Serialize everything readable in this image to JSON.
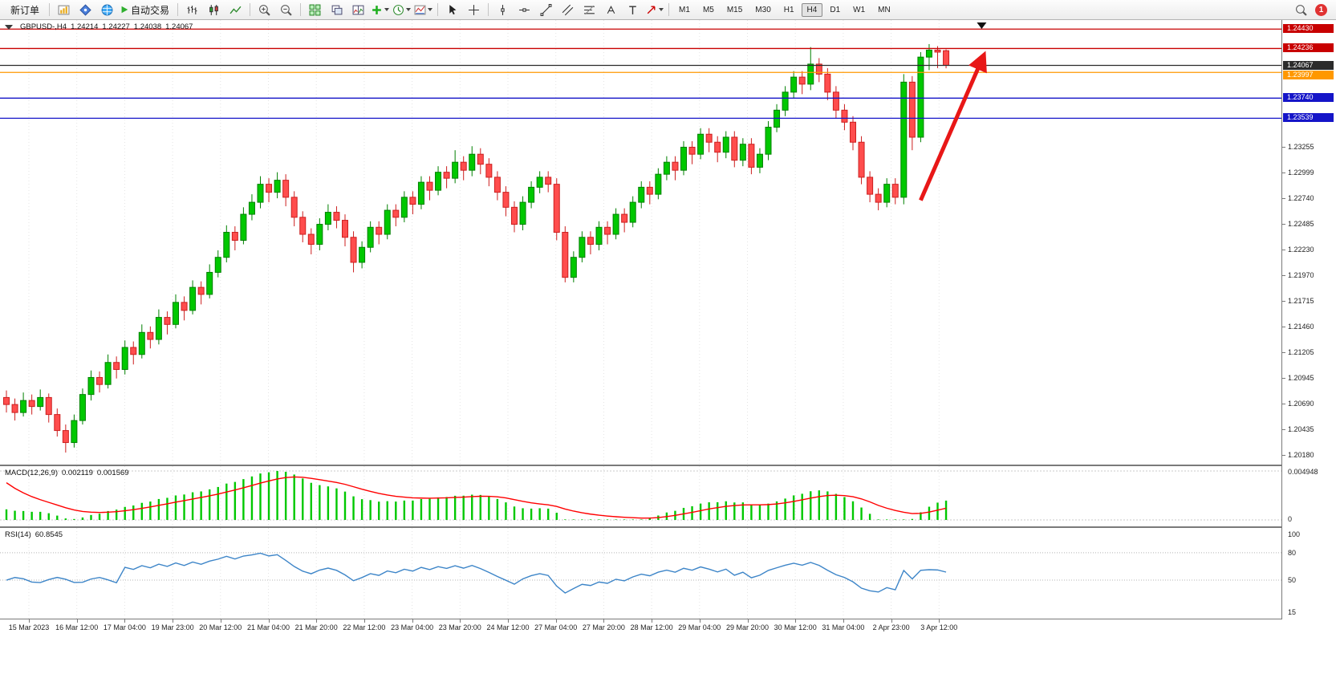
{
  "toolbar": {
    "new_order": "新订单",
    "autotrading": "自动交易",
    "timeframes": [
      "M1",
      "M5",
      "M15",
      "M30",
      "H1",
      "H4",
      "D1",
      "W1",
      "MN"
    ],
    "active_timeframe": "H4",
    "notification_count": "1",
    "icon_names": [
      "market-watch-icon",
      "navigator-icon",
      "terminal-icon",
      "autotrade-play-icon",
      "bar-chart-icon",
      "candlestick-chart-icon",
      "line-chart-icon",
      "zoom-in-icon",
      "zoom-out-icon",
      "tile-windows-icon",
      "cascade-windows-icon",
      "arrange-windows-icon",
      "indicators-icon",
      "periods-icon",
      "templates-icon",
      "cursor-icon",
      "crosshair-icon",
      "vertical-line-icon",
      "horizontal-line-icon",
      "trendline-icon",
      "channel-icon",
      "fibonacci-icon",
      "text-icon",
      "label-icon",
      "shapes-icon",
      "search-icon",
      "notification-badge"
    ]
  },
  "chart": {
    "symbol_period": "GBPUSD-,H4",
    "open": "1.24214",
    "high": "1.24227",
    "low": "1.24038",
    "close": "1.24067",
    "levels": [
      {
        "price": "1.24430",
        "value": 1.2443,
        "color": "#c80000"
      },
      {
        "price": "1.24236",
        "value": 1.24236,
        "color": "#c80000"
      },
      {
        "price": "1.24067",
        "value": 1.24067,
        "color": "#2b2b2b"
      },
      {
        "price": "1.23997",
        "value": 1.23997,
        "color": "#ff9800"
      },
      {
        "price": "1.23740",
        "value": 1.2374,
        "color": "#1515c8"
      },
      {
        "price": "1.23539",
        "value": 1.23539,
        "color": "#1515c8"
      }
    ]
  },
  "macd": {
    "label": "MACD(12,26,9)",
    "macd_value": "0.002119",
    "signal_value": "0.001569",
    "axis_labels": [
      "0.004948",
      "0"
    ]
  },
  "rsi": {
    "label": "RSI(14)",
    "value": "60.8545",
    "axis_labels": [
      "100",
      "80",
      "50",
      "15"
    ]
  },
  "chart_data": {
    "type": "candlestick",
    "symbol": "GBPUSD",
    "period": "H4",
    "price_axis": {
      "min": 1.2008,
      "max": 1.2452,
      "labels": [
        "1.23255",
        "1.22999",
        "1.22740",
        "1.22485",
        "1.22230",
        "1.21970",
        "1.21715",
        "1.21460",
        "1.21205",
        "1.20945",
        "1.20690",
        "1.20435",
        "1.20180"
      ]
    },
    "x_labels": [
      "15 Mar 2023",
      "16 Mar 12:00",
      "17 Mar 04:00",
      "19 Mar 23:00",
      "20 Mar 12:00",
      "21 Mar 04:00",
      "21 Mar 20:00",
      "22 Mar 12:00",
      "23 Mar 04:00",
      "23 Mar 20:00",
      "24 Mar 12:00",
      "27 Mar 04:00",
      "27 Mar 20:00",
      "28 Mar 12:00",
      "29 Mar 04:00",
      "29 Mar 20:00",
      "30 Mar 12:00",
      "31 Mar 04:00",
      "2 Apr 23:00",
      "3 Apr 12:00"
    ],
    "candles": [
      [
        1.2075,
        1.2082,
        1.206,
        1.2068
      ],
      [
        1.2068,
        1.2074,
        1.2052,
        1.206
      ],
      [
        1.206,
        1.208,
        1.2056,
        1.2072
      ],
      [
        1.2072,
        1.2078,
        1.2058,
        1.2066
      ],
      [
        1.2066,
        1.2083,
        1.2062,
        1.2075
      ],
      [
        1.2075,
        1.2079,
        1.205,
        1.2058
      ],
      [
        1.2058,
        1.2064,
        1.2036,
        1.2042
      ],
      [
        1.2042,
        1.2048,
        1.202,
        1.203
      ],
      [
        1.203,
        1.2058,
        1.2025,
        1.2052
      ],
      [
        1.2052,
        1.2084,
        1.2048,
        1.2078
      ],
      [
        1.2078,
        1.2102,
        1.2072,
        1.2095
      ],
      [
        1.2095,
        1.2101,
        1.208,
        1.2088
      ],
      [
        1.2088,
        1.2118,
        1.2084,
        1.211
      ],
      [
        1.211,
        1.2116,
        1.2094,
        1.2103
      ],
      [
        1.2103,
        1.2132,
        1.2098,
        1.2125
      ],
      [
        1.2125,
        1.2131,
        1.2108,
        1.2118
      ],
      [
        1.2118,
        1.2148,
        1.2114,
        1.214
      ],
      [
        1.214,
        1.2146,
        1.2124,
        1.2133
      ],
      [
        1.2133,
        1.2163,
        1.2128,
        1.2155
      ],
      [
        1.2155,
        1.2161,
        1.2138,
        1.2148
      ],
      [
        1.2148,
        1.2178,
        1.2144,
        1.217
      ],
      [
        1.217,
        1.2176,
        1.2152,
        1.2162
      ],
      [
        1.2162,
        1.2192,
        1.2158,
        1.2185
      ],
      [
        1.2185,
        1.2191,
        1.2168,
        1.2178
      ],
      [
        1.2178,
        1.2208,
        1.2174,
        1.22
      ],
      [
        1.22,
        1.2222,
        1.2195,
        1.2215
      ],
      [
        1.2215,
        1.2247,
        1.221,
        1.224
      ],
      [
        1.224,
        1.2246,
        1.2222,
        1.2232
      ],
      [
        1.2232,
        1.2265,
        1.2228,
        1.2258
      ],
      [
        1.2258,
        1.2278,
        1.2252,
        1.227
      ],
      [
        1.227,
        1.2296,
        1.2264,
        1.2288
      ],
      [
        1.2288,
        1.2294,
        1.227,
        1.228
      ],
      [
        1.228,
        1.23,
        1.2274,
        1.2292
      ],
      [
        1.2292,
        1.2298,
        1.2266,
        1.2275
      ],
      [
        1.2275,
        1.2281,
        1.2246,
        1.2255
      ],
      [
        1.2255,
        1.2261,
        1.223,
        1.2238
      ],
      [
        1.2238,
        1.2244,
        1.2218,
        1.2228
      ],
      [
        1.2228,
        1.2254,
        1.2222,
        1.2248
      ],
      [
        1.2248,
        1.2268,
        1.2242,
        1.226
      ],
      [
        1.226,
        1.2266,
        1.2244,
        1.2252
      ],
      [
        1.2252,
        1.2258,
        1.2226,
        1.2235
      ],
      [
        1.2235,
        1.2241,
        1.22,
        1.221
      ],
      [
        1.221,
        1.2231,
        1.2204,
        1.2225
      ],
      [
        1.2225,
        1.2251,
        1.222,
        1.2245
      ],
      [
        1.2245,
        1.2251,
        1.2228,
        1.2238
      ],
      [
        1.2238,
        1.2268,
        1.2233,
        1.2262
      ],
      [
        1.2262,
        1.2268,
        1.2246,
        1.2255
      ],
      [
        1.2255,
        1.2281,
        1.225,
        1.2275
      ],
      [
        1.2275,
        1.2281,
        1.2258,
        1.2268
      ],
      [
        1.2268,
        1.2296,
        1.2263,
        1.229
      ],
      [
        1.229,
        1.2296,
        1.2272,
        1.2282
      ],
      [
        1.2282,
        1.2306,
        1.2277,
        1.23
      ],
      [
        1.23,
        1.2306,
        1.2284,
        1.2294
      ],
      [
        1.2294,
        1.2322,
        1.2289,
        1.231
      ],
      [
        1.231,
        1.2316,
        1.2292,
        1.2302
      ],
      [
        1.2302,
        1.2326,
        1.2296,
        1.2318
      ],
      [
        1.2318,
        1.2324,
        1.2298,
        1.2308
      ],
      [
        1.2308,
        1.2314,
        1.2286,
        1.2295
      ],
      [
        1.2295,
        1.2301,
        1.2272,
        1.228
      ],
      [
        1.228,
        1.2286,
        1.2256,
        1.2265
      ],
      [
        1.2265,
        1.2271,
        1.224,
        1.2248
      ],
      [
        1.2248,
        1.2276,
        1.2242,
        1.227
      ],
      [
        1.227,
        1.2291,
        1.2264,
        1.2285
      ],
      [
        1.2285,
        1.2301,
        1.2279,
        1.2295
      ],
      [
        1.2295,
        1.2301,
        1.228,
        1.2288
      ],
      [
        1.2288,
        1.2294,
        1.2232,
        1.224
      ],
      [
        1.224,
        1.2246,
        1.219,
        1.2195
      ],
      [
        1.2195,
        1.2221,
        1.219,
        1.2215
      ],
      [
        1.2215,
        1.2241,
        1.221,
        1.2235
      ],
      [
        1.2235,
        1.2241,
        1.2218,
        1.2228
      ],
      [
        1.2228,
        1.2251,
        1.2222,
        1.2245
      ],
      [
        1.2245,
        1.2251,
        1.2228,
        1.2238
      ],
      [
        1.2238,
        1.2264,
        1.2233,
        1.2258
      ],
      [
        1.2258,
        1.2264,
        1.224,
        1.225
      ],
      [
        1.225,
        1.2276,
        1.2245,
        1.227
      ],
      [
        1.227,
        1.2291,
        1.2264,
        1.2285
      ],
      [
        1.2285,
        1.2291,
        1.2268,
        1.2278
      ],
      [
        1.2278,
        1.2304,
        1.2273,
        1.2298
      ],
      [
        1.2298,
        1.2316,
        1.2292,
        1.231
      ],
      [
        1.231,
        1.2316,
        1.2292,
        1.2302
      ],
      [
        1.2302,
        1.2331,
        1.2297,
        1.2325
      ],
      [
        1.2325,
        1.2331,
        1.2308,
        1.2318
      ],
      [
        1.2318,
        1.2344,
        1.2313,
        1.2338
      ],
      [
        1.2338,
        1.2344,
        1.232,
        1.233
      ],
      [
        1.233,
        1.2336,
        1.231,
        1.232
      ],
      [
        1.232,
        1.2341,
        1.2314,
        1.2335
      ],
      [
        1.2335,
        1.2341,
        1.2305,
        1.2312
      ],
      [
        1.2312,
        1.2334,
        1.2306,
        1.2328
      ],
      [
        1.2328,
        1.2334,
        1.2298,
        1.2305
      ],
      [
        1.2305,
        1.2324,
        1.2299,
        1.2318
      ],
      [
        1.2318,
        1.2351,
        1.2312,
        1.2345
      ],
      [
        1.2345,
        1.2368,
        1.234,
        1.2362
      ],
      [
        1.2362,
        1.2386,
        1.2356,
        1.238
      ],
      [
        1.238,
        1.2401,
        1.2374,
        1.2395
      ],
      [
        1.2395,
        1.2401,
        1.2378,
        1.2388
      ],
      [
        1.2388,
        1.2425,
        1.2382,
        1.2408
      ],
      [
        1.2408,
        1.2414,
        1.239,
        1.2398
      ],
      [
        1.2398,
        1.2404,
        1.2372,
        1.238
      ],
      [
        1.238,
        1.2386,
        1.2354,
        1.2362
      ],
      [
        1.2362,
        1.2368,
        1.2342,
        1.235
      ],
      [
        1.235,
        1.2356,
        1.2322,
        1.233
      ],
      [
        1.233,
        1.2336,
        1.2288,
        1.2295
      ],
      [
        1.2295,
        1.2301,
        1.227,
        1.2278
      ],
      [
        1.2278,
        1.2284,
        1.2262,
        1.227
      ],
      [
        1.227,
        1.2294,
        1.2265,
        1.2288
      ],
      [
        1.2288,
        1.2294,
        1.2268,
        1.2275
      ],
      [
        1.2275,
        1.2398,
        1.2268,
        1.239
      ],
      [
        1.239,
        1.2396,
        1.2322,
        1.2335
      ],
      [
        1.2335,
        1.242,
        1.233,
        1.2415
      ],
      [
        1.2415,
        1.2428,
        1.2402,
        1.2422
      ],
      [
        1.2422,
        1.2426,
        1.2404,
        1.242
      ],
      [
        1.24214,
        1.24227,
        1.24038,
        1.24067
      ]
    ],
    "annotations": {
      "arrow": {
        "from_price": 1.2272,
        "to_price": 1.2412
      },
      "top_marker": true
    },
    "colors": {
      "up": "#00c800",
      "up_border": "#008000",
      "down": "#ff4d4d",
      "down_border": "#cc1f1f",
      "macd_hist": "#00c800",
      "macd_signal": "#ff0000",
      "rsi_line": "#3d85c8",
      "arrow": "#e81717",
      "grid": "#e4e4e4"
    }
  }
}
